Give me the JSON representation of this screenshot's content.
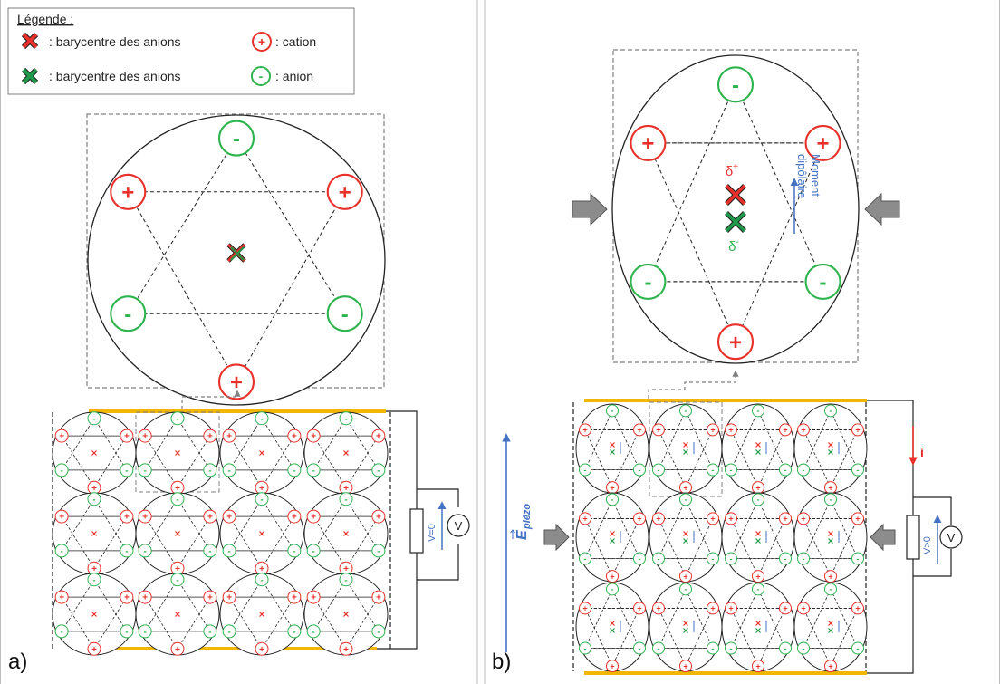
{
  "legend": {
    "title": "Légende :",
    "items": [
      {
        "label": ": barycentre des anions",
        "symbol": "cross",
        "color": "#e8312a"
      },
      {
        "label": ": barycentre des anions",
        "symbol": "cross",
        "color": "#1f9a4a"
      },
      {
        "label": ": cation",
        "symbol": "+",
        "color": "#e8312a"
      },
      {
        "label": ": anion",
        "symbol": "-",
        "color": "#2eb44e"
      }
    ]
  },
  "panel_a": {
    "label": "a)",
    "voltmeter_symbol": "V",
    "voltage_label": "V=0"
  },
  "panel_b": {
    "label": "b)",
    "voltmeter_symbol": "V",
    "voltage_label": "V>0",
    "current_label": "i",
    "field_label": "E",
    "field_subscript": "piézo",
    "delta_plus": "δ",
    "delta_plus_sup": "+",
    "delta_minus": "δ",
    "delta_minus_sup": "-",
    "dipole_label_line1": "Moment",
    "dipole_label_line2": "dipôlaire"
  },
  "colors": {
    "cation": "#e8312a",
    "anion": "#2eb44e",
    "cross_green": "#1f9a4a",
    "electrode": "#f2b705",
    "arrow_blue": "#4472c4",
    "press_arrow": "#8c8c8c",
    "frame": "#7f7f7f"
  }
}
